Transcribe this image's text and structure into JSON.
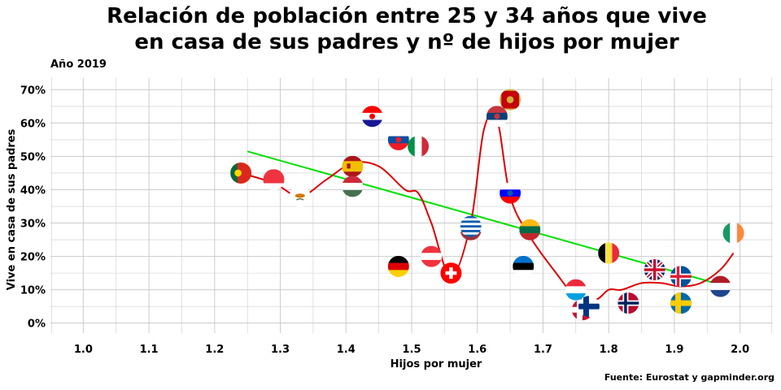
{
  "title_line1": "Relación de población entre 25 y 34 años que vive",
  "title_line2": "en casa de sus padres y nº de hijos por mujer",
  "subtitle": "Año 2019",
  "caption": "Fuente: Eurostat y gapminder.org",
  "colors": {
    "grid": "#cccccc",
    "trend_line": "#00e000",
    "smooth_line": "#dd0000",
    "background": "#ffffff"
  },
  "chart_data": {
    "type": "scatter",
    "xlabel": "Hijos por mujer",
    "ylabel": "Vive en casa de sus padres",
    "xlim": [
      0.95,
      2.05
    ],
    "ylim": [
      -0.03,
      0.735
    ],
    "xticks": [
      1.0,
      1.1,
      1.2,
      1.3,
      1.4,
      1.5,
      1.6,
      1.7,
      1.8,
      1.9,
      2.0
    ],
    "xtick_labels": [
      "1.0",
      "1.1",
      "1.2",
      "1.3",
      "1.4",
      "1.5",
      "1.6",
      "1.7",
      "1.8",
      "1.9",
      "2.0"
    ],
    "yticks": [
      0,
      0.1,
      0.2,
      0.3,
      0.4,
      0.5,
      0.6,
      0.7
    ],
    "ytick_labels": [
      "0%",
      "10%",
      "20%",
      "30%",
      "40%",
      "50%",
      "60%",
      "70%"
    ],
    "grid": true,
    "marker": "flag",
    "points": [
      {
        "flag": "portugal",
        "x": 1.24,
        "y": 0.45
      },
      {
        "flag": "austria-red",
        "x": 1.29,
        "y": 0.43
      },
      {
        "flag": "cyprus",
        "x": 1.33,
        "y": 0.38
      },
      {
        "flag": "spain",
        "x": 1.41,
        "y": 0.47
      },
      {
        "flag": "hungary",
        "x": 1.41,
        "y": 0.41
      },
      {
        "flag": "croatia",
        "x": 1.44,
        "y": 0.62
      },
      {
        "flag": "slovakia",
        "x": 1.48,
        "y": 0.55
      },
      {
        "flag": "italy",
        "x": 1.51,
        "y": 0.53
      },
      {
        "flag": "germany",
        "x": 1.48,
        "y": 0.17
      },
      {
        "flag": "austria",
        "x": 1.53,
        "y": 0.2
      },
      {
        "flag": "switzerland",
        "x": 1.56,
        "y": 0.15
      },
      {
        "flag": "latvia",
        "x": 1.59,
        "y": 0.28
      },
      {
        "flag": "greece",
        "x": 1.59,
        "y": 0.29
      },
      {
        "flag": "serbia",
        "x": 1.63,
        "y": 0.62
      },
      {
        "flag": "montenegro",
        "x": 1.65,
        "y": 0.67
      },
      {
        "flag": "slovenia",
        "x": 1.65,
        "y": 0.39
      },
      {
        "flag": "estonia",
        "x": 1.67,
        "y": 0.17
      },
      {
        "flag": "lithuania",
        "x": 1.68,
        "y": 0.28
      },
      {
        "flag": "luxembourg",
        "x": 1.75,
        "y": 0.1
      },
      {
        "flag": "denmark",
        "x": 1.76,
        "y": 0.04
      },
      {
        "flag": "finland",
        "x": 1.77,
        "y": 0.05
      },
      {
        "flag": "belgium",
        "x": 1.8,
        "y": 0.21
      },
      {
        "flag": "norway",
        "x": 1.83,
        "y": 0.06
      },
      {
        "flag": "united-kingdom",
        "x": 1.87,
        "y": 0.16
      },
      {
        "flag": "iceland",
        "x": 1.91,
        "y": 0.14
      },
      {
        "flag": "sweden",
        "x": 1.91,
        "y": 0.06
      },
      {
        "flag": "netherlands",
        "x": 1.97,
        "y": 0.11
      },
      {
        "flag": "ireland",
        "x": 1.99,
        "y": 0.27
      }
    ],
    "series": [
      {
        "kind": "linear-trend",
        "x": [
          1.25,
          1.98
        ],
        "y": [
          0.515,
          0.11
        ]
      },
      {
        "kind": "smooth",
        "x": [
          1.24,
          1.29,
          1.33,
          1.37,
          1.41,
          1.45,
          1.49,
          1.51,
          1.53,
          1.56,
          1.59,
          1.61,
          1.63,
          1.65,
          1.68,
          1.72,
          1.75,
          1.78,
          1.8,
          1.82,
          1.85,
          1.88,
          1.91,
          1.94,
          1.97,
          1.99
        ],
        "y": [
          0.45,
          0.42,
          0.38,
          0.43,
          0.48,
          0.47,
          0.4,
          0.39,
          0.3,
          0.14,
          0.3,
          0.58,
          0.61,
          0.38,
          0.26,
          0.15,
          0.08,
          0.07,
          0.1,
          0.1,
          0.12,
          0.12,
          0.11,
          0.12,
          0.16,
          0.21
        ]
      }
    ]
  }
}
